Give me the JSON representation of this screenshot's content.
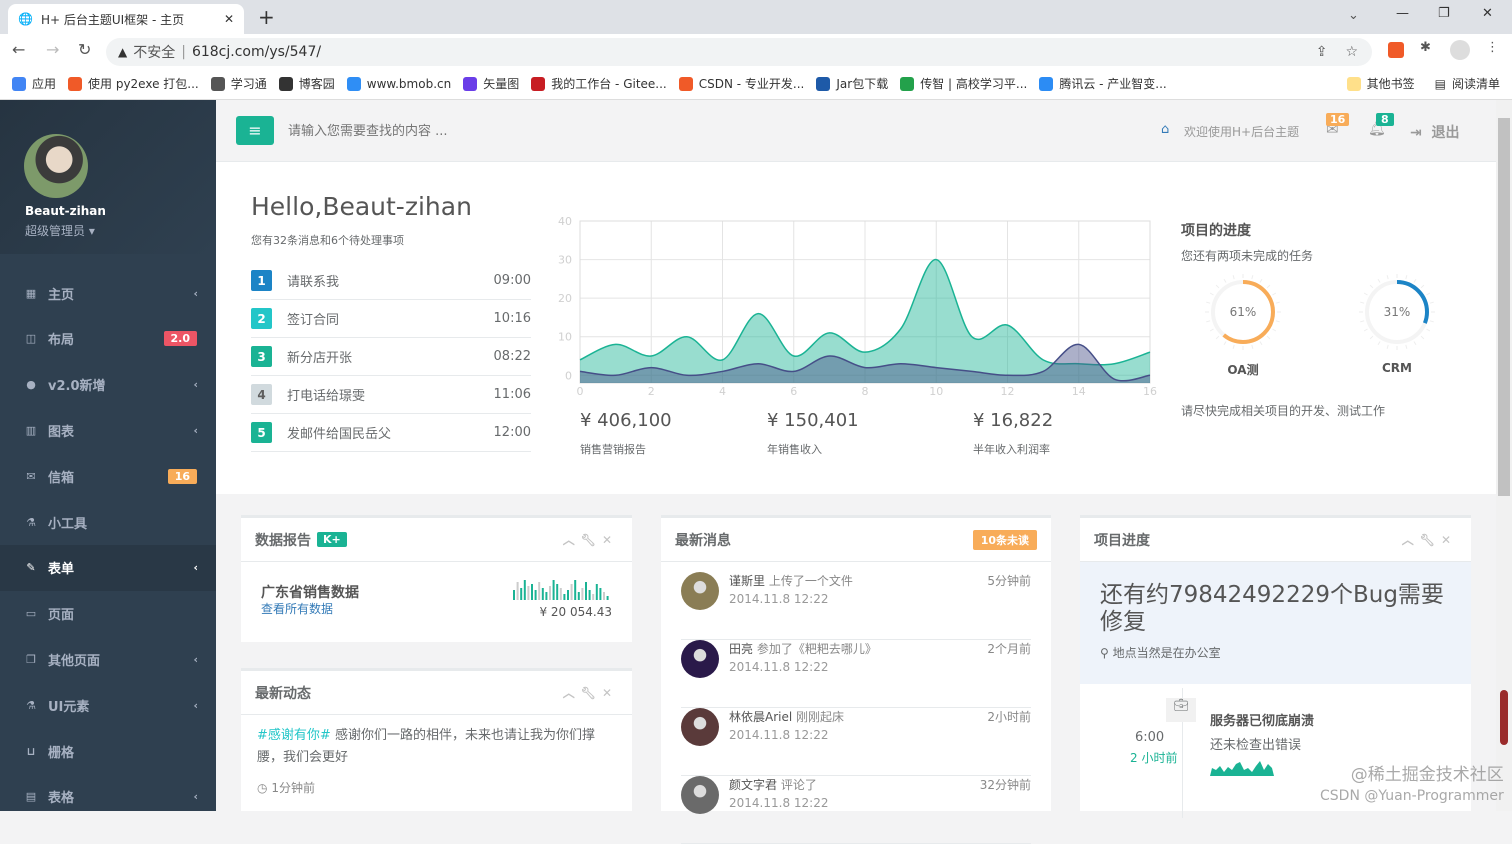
{
  "browser": {
    "tab_title": "H+ 后台主题UI框架 - 主页",
    "security": "不安全",
    "url": "618cj.com/ys/547/",
    "bookmarks": [
      {
        "label": "应用",
        "color": "#4285f4"
      },
      {
        "label": "使用 py2exe 打包...",
        "color": "#f05a28"
      },
      {
        "label": "学习通",
        "color": "#555"
      },
      {
        "label": "博客园",
        "color": "#333"
      },
      {
        "label": "www.bmob.cn",
        "color": "#2f8ef5"
      },
      {
        "label": "矢量图",
        "color": "#6a3de8"
      },
      {
        "label": "我的工作台 - Gitee...",
        "color": "#c71d23"
      },
      {
        "label": "CSDN - 专业开发...",
        "color": "#f05a28"
      },
      {
        "label": "Jar包下载",
        "color": "#1e5aa8"
      },
      {
        "label": "传智 | 高校学习平...",
        "color": "#23a14b"
      },
      {
        "label": "腾讯云 - 产业智变...",
        "color": "#2c8cf4"
      }
    ],
    "other_bookmarks": "其他书签",
    "reading_list": "阅读清单"
  },
  "sidebar": {
    "user": "Beaut-zihan",
    "role": "超级管理员",
    "items": [
      {
        "label": "主页",
        "icon": "th-large-icon",
        "glyph": "▦",
        "arrow": true
      },
      {
        "label": "布局",
        "icon": "columns-icon",
        "glyph": "◫",
        "badge": "2.0",
        "badge_color": "#ed5565"
      },
      {
        "label": "v2.0新增",
        "icon": "globe-icon",
        "glyph": "●",
        "arrow": true
      },
      {
        "label": "图表",
        "icon": "bar-chart-icon",
        "glyph": "▥",
        "arrow": true
      },
      {
        "label": "信箱",
        "icon": "envelope-icon",
        "glyph": "✉",
        "badge": "16",
        "badge_color": "#f8ac59"
      },
      {
        "label": "小工具",
        "icon": "flask-icon",
        "glyph": "⚗"
      },
      {
        "label": "表单",
        "icon": "edit-icon",
        "glyph": "✎",
        "arrow": true,
        "active": true
      },
      {
        "label": "页面",
        "icon": "desktop-icon",
        "glyph": "▭"
      },
      {
        "label": "其他页面",
        "icon": "files-icon",
        "glyph": "❐",
        "arrow": true
      },
      {
        "label": "UI元素",
        "icon": "flask-icon",
        "glyph": "⚗",
        "arrow": true
      },
      {
        "label": "栅格",
        "icon": "laptop-icon",
        "glyph": "⊔"
      },
      {
        "label": "表格",
        "icon": "table-icon",
        "glyph": "▤",
        "arrow": true
      }
    ]
  },
  "topnav": {
    "search_placeholder": "请输入您需要查找的内容 ...",
    "welcome": "欢迎使用H+后台主题",
    "mail_count": "16",
    "bell_count": "8",
    "logout": "退出"
  },
  "hero": {
    "greeting": "Hello,Beaut-zihan",
    "subtitle": "您有32条消息和6个待处理事项",
    "todos": [
      {
        "n": "1",
        "text": "请联系我",
        "time": "09:00",
        "color": "#1c84c6"
      },
      {
        "n": "2",
        "text": "签订合同",
        "time": "10:16",
        "color": "#23c6c8"
      },
      {
        "n": "3",
        "text": "新分店开张",
        "time": "08:22",
        "color": "#1ab394"
      },
      {
        "n": "4",
        "text": "打电话给璟雯",
        "time": "11:06",
        "color": "#d1dade"
      },
      {
        "n": "5",
        "text": "发邮件给国民岳父",
        "time": "12:00",
        "color": "#1ab394"
      }
    ],
    "stats": [
      {
        "value": "¥ 406,100",
        "label": "销售营销报告"
      },
      {
        "value": "¥ 150,401",
        "label": "年销售收入"
      },
      {
        "value": "¥ 16,822",
        "label": "半年收入利润率"
      }
    ],
    "progress": {
      "title": "项目的进度",
      "subtitle": "您还有两项未完成的任务",
      "footer": "请尽快完成相关项目的开发、测试工作",
      "gauges": [
        {
          "label": "OA测",
          "percent": 61,
          "text": "61%",
          "color": "#f8ac59"
        },
        {
          "label": "CRM",
          "percent": 31,
          "text": "31%",
          "color": "#1c84c6"
        }
      ]
    }
  },
  "chart_data": {
    "type": "area",
    "x": [
      0,
      1,
      2,
      3,
      4,
      5,
      6,
      7,
      8,
      9,
      10,
      11,
      12,
      13,
      14,
      15,
      16
    ],
    "series": [
      {
        "values": [
          4,
          8,
          5,
          10,
          4,
          16,
          5,
          11,
          6,
          12,
          30,
          10,
          13,
          4,
          3,
          3,
          6
        ],
        "color": "#1ab394"
      },
      {
        "values": [
          1,
          0,
          2,
          0,
          1,
          3,
          1,
          5,
          2,
          3,
          2,
          1,
          0,
          1,
          8,
          -1,
          0
        ],
        "color": "#464f88"
      }
    ],
    "xticks": [
      0,
      2,
      4,
      6,
      8,
      10,
      12,
      14,
      16
    ],
    "yticks": [
      0,
      10,
      20,
      30,
      40
    ],
    "xlim": [
      0,
      16
    ],
    "ylim": [
      -2,
      40
    ],
    "grid": true
  },
  "panels": {
    "report": {
      "title": "数据报告",
      "badge": "K+",
      "heading": "广东省销售数据",
      "link": "查看所有数据",
      "amount": "¥ 20 054.43",
      "sparkline": [
        5,
        9,
        6,
        10,
        7,
        8,
        5,
        9,
        6,
        4,
        7,
        10,
        8,
        6,
        3,
        5,
        8,
        10,
        4,
        6,
        9,
        5,
        3,
        8,
        6,
        4,
        2
      ]
    },
    "activity": {
      "title": "最新动态",
      "tag": "#感谢有你#",
      "text": "感谢你们一路的相伴，未来也请让我为你们撑腰，我们会更好",
      "time": "1分钟前"
    },
    "messages": {
      "title": "最新消息",
      "badge": "10条未读",
      "items": [
        {
          "name": "谨斯里",
          "action": "上传了一个文件",
          "date": "2014.11.8 12:22",
          "ago": "5分钟前",
          "color": "#8a7d55"
        },
        {
          "name": "田亮",
          "action": "参加了《粑粑去哪儿》",
          "date": "2014.11.8 12:22",
          "ago": "2个月前",
          "color": "#2a1a4a"
        },
        {
          "name": "林依晨Ariel",
          "action": "刚刚起床",
          "date": "2014.11.8 12:22",
          "ago": "2小时前",
          "color": "#5a3a3a"
        },
        {
          "name": "颜文字君",
          "action": "评论了",
          "date": "2014.11.8 12:22",
          "ago": "32分钟前",
          "color": "#6a6a6a"
        }
      ]
    },
    "project": {
      "title": "项目进度",
      "bug_text": "还有约79842492229个Bug需要修复",
      "location": "地点当然是在办公室",
      "timeline": {
        "time": "6:00",
        "ago": "2 小时前",
        "title": "服务器已彻底崩溃",
        "text": "还未检查出错误"
      }
    }
  },
  "watermark": {
    "line1": "@稀土掘金技术社区",
    "line2": "CSDN @Yuan-Programmer"
  }
}
